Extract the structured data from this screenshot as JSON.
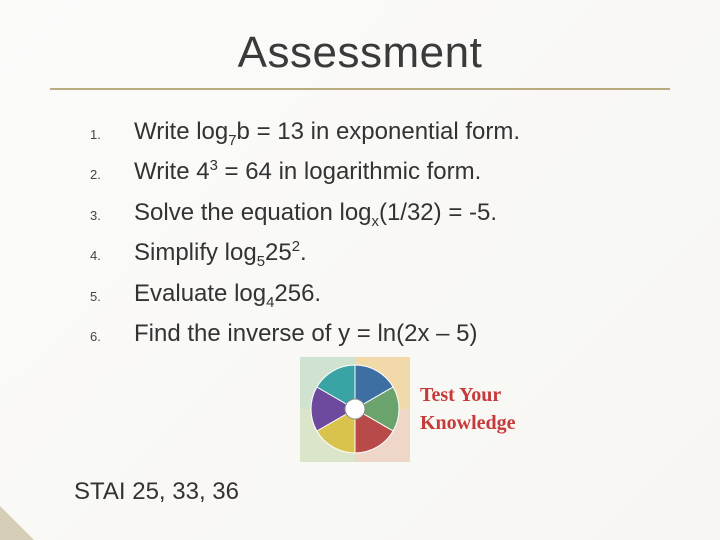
{
  "title": "Assessment",
  "colors": {
    "background_from": "#fbfbfa",
    "background_to": "#f7f6f2",
    "rule": "#b9aa82",
    "text": "#333333",
    "title_text": "#3a3a3a",
    "corner_accent": "#b9aa82"
  },
  "typography": {
    "title_fontsize": 44,
    "item_fontsize": 24,
    "marker_fontsize": 13,
    "footer_fontsize": 24,
    "font_family": "Verdana"
  },
  "items": [
    {
      "marker": "1.",
      "html": "Write log<sub>7</sub>b = 13 in exponential form."
    },
    {
      "marker": "2.",
      "html": "Write 4<sup>3</sup> = 64 in logarithmic form."
    },
    {
      "marker": "3.",
      "html": "Solve the equation log<sub>x</sub>(1/32) = -5."
    },
    {
      "marker": "4.",
      "html": "Simplify log<sub>5</sub>25<sup>2</sup>."
    },
    {
      "marker": "5.",
      "html": "Evaluate log<sub>4</sub>256."
    },
    {
      "marker": "6.",
      "html": "Find the inverse of y = ln(2x – 5)"
    }
  ],
  "footer": "STAI 25, 33, 36",
  "graphic": {
    "caption_line1": "Test Your",
    "caption_line2": "Knowledge",
    "bg_quad_colors": [
      "#d0e3d0",
      "#f2d9aa",
      "#dbe5c9",
      "#eed6c9"
    ],
    "wheel_colors": [
      "#3d6fa3",
      "#6aa36b",
      "#b94a4a",
      "#d9c34d",
      "#6d4a9e",
      "#3aa3a3"
    ],
    "caption_text_color": "#c63a3a",
    "caption_font": "cursive"
  }
}
